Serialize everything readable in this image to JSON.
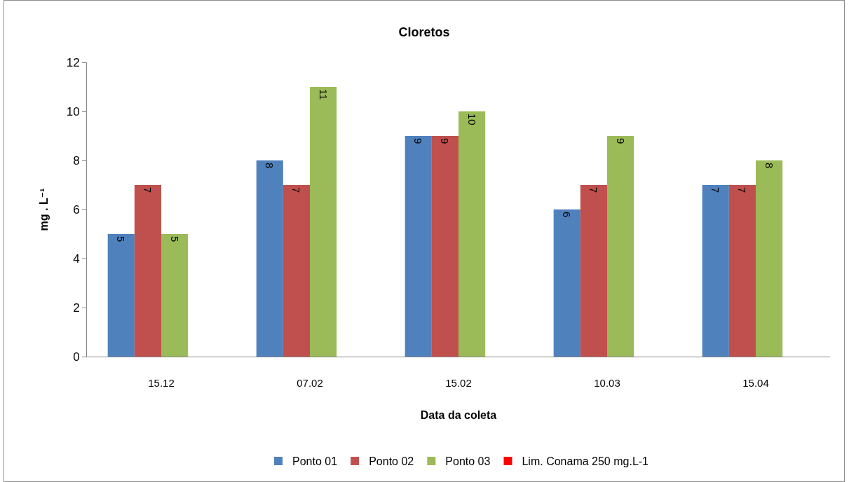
{
  "chart_data": {
    "type": "bar",
    "title": "Cloretos",
    "xlabel": "Data da coleta",
    "ylabel": "mg . L⁻¹",
    "categories": [
      "15.12",
      "07.02",
      "15.02",
      "10.03",
      "15.04"
    ],
    "series": [
      {
        "name": "Ponto 01",
        "color": "#4f81bd",
        "values": [
          5,
          8,
          9,
          6,
          7
        ]
      },
      {
        "name": "Ponto 02",
        "color": "#c0504d",
        "values": [
          7,
          7,
          9,
          7,
          7
        ]
      },
      {
        "name": "Ponto 03",
        "color": "#9bbb59",
        "values": [
          5,
          11,
          10,
          9,
          8
        ]
      },
      {
        "name": "Lim. Conama 250 mg.L-1",
        "color": "#ff0000",
        "values": [
          null,
          null,
          null,
          null,
          null
        ]
      }
    ],
    "ylim": [
      0,
      12
    ],
    "yticks": [
      0,
      2,
      4,
      6,
      8,
      10,
      12
    ],
    "grid": false,
    "legend": "bottom",
    "data_labels": true
  }
}
